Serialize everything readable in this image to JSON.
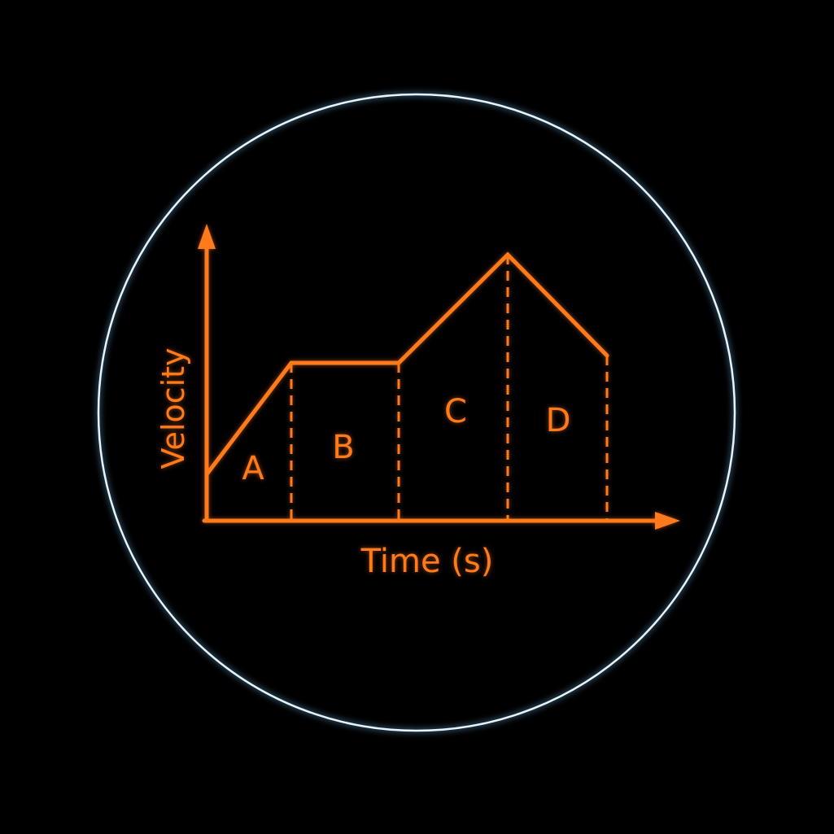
{
  "colors": {
    "background": "#000000",
    "ring": "#e6f4ff",
    "diagram": "#ff7a1a"
  },
  "diagram": {
    "y_axis_label": "Velocity",
    "x_axis_label": "Time (s)",
    "regions": [
      {
        "id": "A",
        "label": "A"
      },
      {
        "id": "B",
        "label": "B"
      },
      {
        "id": "C",
        "label": "C"
      },
      {
        "id": "D",
        "label": "D"
      }
    ]
  }
}
